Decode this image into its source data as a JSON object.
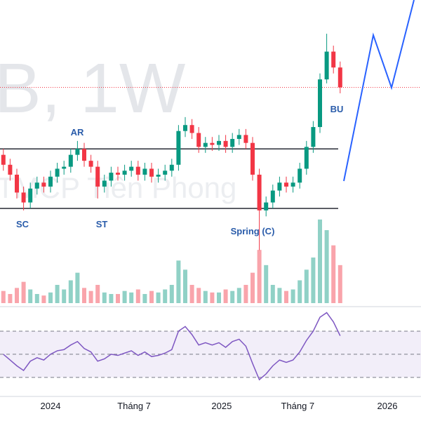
{
  "chart_data": {
    "type": "candlestick",
    "watermark": [
      "B, 1W",
      "TMCP Tiên Phong"
    ],
    "annotations": [
      "AR",
      "SC",
      "ST",
      "Spring (C)",
      "BU"
    ],
    "xlim": [
      -0.5,
      62
    ],
    "xticks": [
      {
        "value": 7,
        "label": "2024"
      },
      {
        "value": 19.4,
        "label": "Tháng 7"
      },
      {
        "value": 32.4,
        "label": "2025"
      },
      {
        "value": 43.7,
        "label": "Tháng 7"
      },
      {
        "value": 57,
        "label": "2026"
      }
    ],
    "ylim": [
      8.8,
      24
    ],
    "up_color": "#089981",
    "down_color": "#f23645",
    "open": [
      16.2,
      15.7,
      15.2,
      14.3,
      13.8,
      14.5,
      14.8,
      14.6,
      15.1,
      15.5,
      15.6,
      16.2,
      16.5,
      15.9,
      15.6,
      14.6,
      14.9,
      15.3,
      15.2,
      15.4,
      15.6,
      15.2,
      15.5,
      15.1,
      15.2,
      15.4,
      15.7,
      17.4,
      17.7,
      17.3,
      16.6,
      16.8,
      16.7,
      16.9,
      16.6,
      17.0,
      17.2,
      16.8,
      15.2,
      13.4,
      13.8,
      14.4,
      14.8,
      14.6,
      14.8,
      15.5,
      16.6,
      17.6,
      20.0,
      21.4,
      20.6
    ],
    "high": [
      16.5,
      16.0,
      15.5,
      14.6,
      14.8,
      15.1,
      15.1,
      15.4,
      15.8,
      15.9,
      16.5,
      16.9,
      16.8,
      16.2,
      15.9,
      15.2,
      15.6,
      15.6,
      15.7,
      15.9,
      15.9,
      15.8,
      15.8,
      15.5,
      15.7,
      16.0,
      17.7,
      18.1,
      18.0,
      17.6,
      17.1,
      17.1,
      17.2,
      17.2,
      17.3,
      17.5,
      17.5,
      17.1,
      15.5,
      14.1,
      14.7,
      15.1,
      15.1,
      15.1,
      15.8,
      16.9,
      17.9,
      20.3,
      22.3,
      21.7,
      20.9
    ],
    "low": [
      15.4,
      14.9,
      14.0,
      13.4,
      13.5,
      14.2,
      14.3,
      14.3,
      14.8,
      15.2,
      15.3,
      15.9,
      15.6,
      15.3,
      14.0,
      14.3,
      14.6,
      14.9,
      14.9,
      15.1,
      14.9,
      14.9,
      14.8,
      14.8,
      14.9,
      15.1,
      15.4,
      17.1,
      17.0,
      16.3,
      16.3,
      16.4,
      16.4,
      16.3,
      16.3,
      16.7,
      16.5,
      14.9,
      11.4,
      13.1,
      13.5,
      14.1,
      14.3,
      14.3,
      14.5,
      15.2,
      16.3,
      17.3,
      19.8,
      20.3,
      19.3
    ],
    "close": [
      15.7,
      15.2,
      14.3,
      13.8,
      14.5,
      14.8,
      14.6,
      15.1,
      15.5,
      15.6,
      16.2,
      16.5,
      15.9,
      15.6,
      14.6,
      14.9,
      15.3,
      15.2,
      15.4,
      15.6,
      15.2,
      15.5,
      15.1,
      15.2,
      15.4,
      15.7,
      17.4,
      17.7,
      17.3,
      16.6,
      16.8,
      16.7,
      16.9,
      16.6,
      17.0,
      17.2,
      16.8,
      15.2,
      13.4,
      13.8,
      14.4,
      14.8,
      14.6,
      14.8,
      15.5,
      16.6,
      17.6,
      20.0,
      21.4,
      20.6,
      19.6
    ],
    "levels": [
      {
        "value": 16.5,
        "color": "#131722",
        "style": "solid"
      },
      {
        "value": 13.5,
        "color": "#131722",
        "style": "solid"
      },
      {
        "value": 19.6,
        "color": "#f23645",
        "style": "dotted"
      }
    ],
    "volume": {
      "ylim": [
        0,
        60
      ],
      "values": [
        8,
        6,
        10,
        14,
        9,
        6,
        5,
        7,
        12,
        9,
        15,
        20,
        10,
        8,
        12,
        7,
        6,
        6,
        8,
        7,
        9,
        6,
        8,
        7,
        9,
        12,
        28,
        22,
        12,
        10,
        8,
        7,
        7,
        9,
        8,
        10,
        12,
        20,
        35,
        25,
        12,
        10,
        8,
        9,
        15,
        22,
        30,
        55,
        48,
        38,
        25
      ]
    },
    "rsi": {
      "ylim": [
        22,
        90
      ],
      "levels": [
        70,
        50,
        30
      ],
      "color": "#7e57c2",
      "values": [
        50,
        45,
        40,
        36,
        44,
        47,
        45,
        50,
        53,
        54,
        58,
        61,
        55,
        52,
        44,
        46,
        50,
        49,
        51,
        53,
        49,
        52,
        48,
        49,
        51,
        54,
        70,
        74,
        67,
        58,
        60,
        58,
        60,
        56,
        61,
        63,
        57,
        42,
        28,
        33,
        40,
        45,
        43,
        45,
        52,
        62,
        70,
        82,
        86,
        78,
        66
      ]
    }
  }
}
